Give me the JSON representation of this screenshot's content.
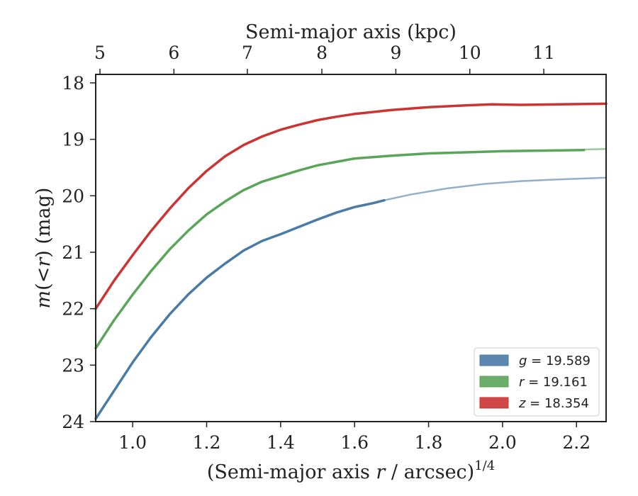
{
  "chart_data": {
    "type": "line",
    "xlabel_main": "(Semi-major axis ",
    "xlabel_var": "r",
    "xlabel_tail": " / arcsec)",
    "xlabel_exp": "1/4",
    "ylabel_main": "m",
    "ylabel_open": "(",
    "ylabel_lt": "<",
    "ylabel_var": "r",
    "ylabel_close": ")",
    "ylabel_unit": " (mag)",
    "top_label": "Semi-major axis (kpc)",
    "xlim": [
      0.9,
      2.28
    ],
    "ylim": [
      24.0,
      17.85
    ],
    "y_inverted": true,
    "x_ticks": [
      "1.0",
      "1.2",
      "1.4",
      "1.6",
      "1.8",
      "2.0",
      "2.2"
    ],
    "y_ticks": [
      "18",
      "19",
      "20",
      "21",
      "22",
      "23",
      "24"
    ],
    "top_ticks": [
      "5",
      "6",
      "7",
      "8",
      "9",
      "10",
      "11"
    ],
    "top_tick_positions": [
      0.9115,
      1.1115,
      1.31,
      1.5115,
      1.7115,
      1.9115,
      2.1115
    ],
    "series": [
      {
        "name": "g = 19.589",
        "color": "#4a7ba7",
        "x": [
          0.9,
          0.95,
          1.0,
          1.05,
          1.1,
          1.15,
          1.2,
          1.25,
          1.3,
          1.35,
          1.4,
          1.45,
          1.5,
          1.55,
          1.6,
          1.65,
          1.68
        ],
        "y": [
          23.95,
          23.45,
          22.95,
          22.5,
          22.1,
          21.75,
          21.45,
          21.2,
          20.97,
          20.8,
          20.68,
          20.55,
          20.42,
          20.3,
          20.2,
          20.13,
          20.08
        ],
        "extension": {
          "x": [
            1.68,
            1.75,
            1.85,
            1.95,
            2.05,
            2.15,
            2.28
          ],
          "y": [
            20.08,
            19.98,
            19.87,
            19.79,
            19.74,
            19.71,
            19.68
          ]
        }
      },
      {
        "name": "r = 19.161",
        "color": "#5aa55a",
        "x": [
          0.9,
          0.95,
          1.0,
          1.05,
          1.1,
          1.15,
          1.2,
          1.25,
          1.3,
          1.35,
          1.4,
          1.45,
          1.5,
          1.55,
          1.6,
          1.7,
          1.8,
          1.9,
          2.0,
          2.1,
          2.22
        ],
        "y": [
          22.7,
          22.2,
          21.75,
          21.33,
          20.95,
          20.62,
          20.33,
          20.1,
          19.9,
          19.75,
          19.65,
          19.55,
          19.46,
          19.4,
          19.34,
          19.29,
          19.25,
          19.23,
          19.21,
          19.2,
          19.19
        ],
        "extension": {
          "x": [
            2.22,
            2.28
          ],
          "y": [
            19.18,
            19.17
          ]
        }
      },
      {
        "name": "z = 18.354",
        "color": "#cc3333",
        "x": [
          0.9,
          0.95,
          1.0,
          1.05,
          1.1,
          1.15,
          1.2,
          1.25,
          1.3,
          1.35,
          1.4,
          1.45,
          1.5,
          1.55,
          1.6,
          1.7,
          1.8,
          1.9,
          1.97,
          2.05,
          2.15,
          2.28
        ],
        "y": [
          22.0,
          21.5,
          21.05,
          20.62,
          20.23,
          19.87,
          19.56,
          19.3,
          19.1,
          18.95,
          18.83,
          18.74,
          18.66,
          18.6,
          18.55,
          18.48,
          18.43,
          18.4,
          18.38,
          18.39,
          18.38,
          18.37
        ],
        "extension": null
      }
    ],
    "legend": [
      {
        "var": "g",
        "value": " = 19.589",
        "color": "#4a7ba7"
      },
      {
        "var": "r",
        "value": " = 19.161",
        "color": "#5aa55a"
      },
      {
        "var": "z",
        "value": " = 18.354",
        "color": "#cc3333"
      }
    ],
    "legend_placement": "lower-right",
    "grid": false
  }
}
